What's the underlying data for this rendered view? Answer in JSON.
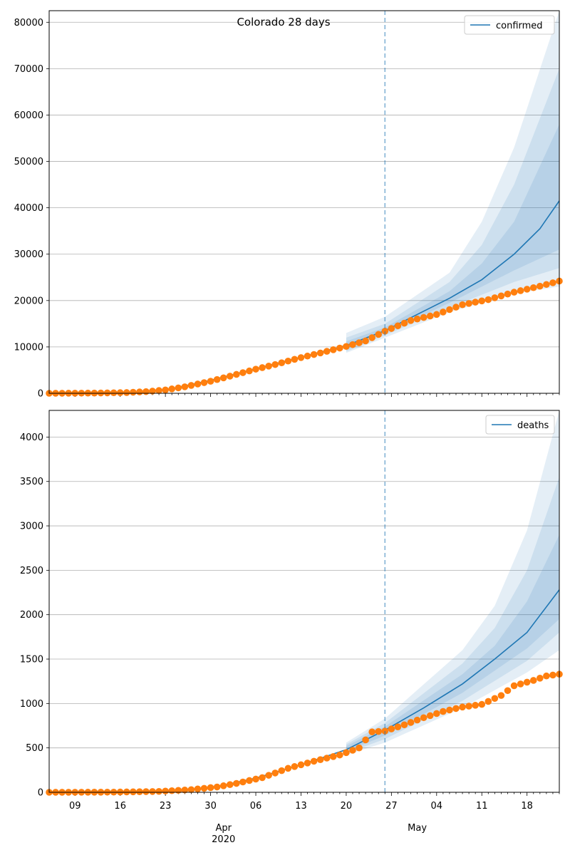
{
  "chart_data": [
    {
      "type": "line",
      "title": "Colorado 28 days",
      "xlabel": "",
      "ylabel": "",
      "ylim": [
        0,
        82500
      ],
      "yticks": [
        0,
        10000,
        20000,
        30000,
        40000,
        50000,
        60000,
        70000,
        80000
      ],
      "grid": true,
      "legend": "top-right",
      "forecast_start": "2020-04-26",
      "x_start": "2020-03-05",
      "x_end": "2020-05-23",
      "series": [
        {
          "name": "confirmed",
          "color": "#1f77b4",
          "model": [
            {
              "x": "2020-03-05",
              "y": 0
            },
            {
              "x": "2020-03-19",
              "y": 150
            },
            {
              "x": "2020-03-24",
              "y": 1000
            },
            {
              "x": "2020-03-30",
              "y": 2800
            },
            {
              "x": "2020-04-06",
              "y": 5300
            },
            {
              "x": "2020-04-13",
              "y": 7800
            },
            {
              "x": "2020-04-20",
              "y": 10300
            },
            {
              "x": "2020-04-26",
              "y": 13500
            },
            {
              "x": "2020-05-01",
              "y": 17000
            },
            {
              "x": "2020-05-06",
              "y": 20500
            },
            {
              "x": "2020-05-11",
              "y": 24500
            },
            {
              "x": "2020-05-16",
              "y": 30000
            },
            {
              "x": "2020-05-20",
              "y": 35500
            },
            {
              "x": "2020-05-23",
              "y": 41500
            }
          ],
          "bands": [
            {
              "color": "#1f77b4",
              "opacity": 0.12,
              "lower": [
                {
                  "x": "2020-04-20",
                  "y": 8700
                },
                {
                  "x": "2020-04-26",
                  "y": 12000
                },
                {
                  "x": "2020-05-06",
                  "y": 17500
                },
                {
                  "x": "2020-05-16",
                  "y": 21500
                },
                {
                  "x": "2020-05-23",
                  "y": 23000
                }
              ],
              "upper": [
                {
                  "x": "2020-04-20",
                  "y": 13000
                },
                {
                  "x": "2020-04-26",
                  "y": 16500
                },
                {
                  "x": "2020-05-06",
                  "y": 26000
                },
                {
                  "x": "2020-05-11",
                  "y": 37000
                },
                {
                  "x": "2020-05-16",
                  "y": 53000
                },
                {
                  "x": "2020-05-23",
                  "y": 82500
                }
              ]
            },
            {
              "color": "#1f77b4",
              "opacity": 0.12,
              "lower": [
                {
                  "x": "2020-04-20",
                  "y": 9000
                },
                {
                  "x": "2020-04-26",
                  "y": 12500
                },
                {
                  "x": "2020-05-06",
                  "y": 18500
                },
                {
                  "x": "2020-05-16",
                  "y": 24000
                },
                {
                  "x": "2020-05-23",
                  "y": 27000
                }
              ],
              "upper": [
                {
                  "x": "2020-04-20",
                  "y": 12000
                },
                {
                  "x": "2020-04-26",
                  "y": 15000
                },
                {
                  "x": "2020-05-06",
                  "y": 24000
                },
                {
                  "x": "2020-05-11",
                  "y": 32000
                },
                {
                  "x": "2020-05-16",
                  "y": 45000
                },
                {
                  "x": "2020-05-23",
                  "y": 70000
                }
              ]
            },
            {
              "color": "#1f77b4",
              "opacity": 0.12,
              "lower": [
                {
                  "x": "2020-04-20",
                  "y": 9500
                },
                {
                  "x": "2020-04-26",
                  "y": 13000
                },
                {
                  "x": "2020-05-06",
                  "y": 19500
                },
                {
                  "x": "2020-05-16",
                  "y": 26500
                },
                {
                  "x": "2020-05-23",
                  "y": 31000
                }
              ],
              "upper": [
                {
                  "x": "2020-04-20",
                  "y": 11200
                },
                {
                  "x": "2020-04-26",
                  "y": 14200
                },
                {
                  "x": "2020-05-06",
                  "y": 22000
                },
                {
                  "x": "2020-05-11",
                  "y": 28000
                },
                {
                  "x": "2020-05-16",
                  "y": 37000
                },
                {
                  "x": "2020-05-23",
                  "y": 58000
                }
              ]
            }
          ],
          "observed": [
            {
              "x": "2020-03-05",
              "y": 0
            },
            {
              "x": "2020-03-12",
              "y": 50
            },
            {
              "x": "2020-03-17",
              "y": 160
            },
            {
              "x": "2020-03-20",
              "y": 360
            },
            {
              "x": "2020-03-23",
              "y": 720
            },
            {
              "x": "2020-03-26",
              "y": 1400
            },
            {
              "x": "2020-03-30",
              "y": 2600
            },
            {
              "x": "2020-04-02",
              "y": 3700
            },
            {
              "x": "2020-04-06",
              "y": 5200
            },
            {
              "x": "2020-04-09",
              "y": 6200
            },
            {
              "x": "2020-04-13",
              "y": 7700
            },
            {
              "x": "2020-04-16",
              "y": 8700
            },
            {
              "x": "2020-04-20",
              "y": 10100
            },
            {
              "x": "2020-04-23",
              "y": 11300
            },
            {
              "x": "2020-04-26",
              "y": 13400
            },
            {
              "x": "2020-04-30",
              "y": 15700
            },
            {
              "x": "2020-05-04",
              "y": 17000
            },
            {
              "x": "2020-05-08",
              "y": 19100
            },
            {
              "x": "2020-05-12",
              "y": 20200
            },
            {
              "x": "2020-05-16",
              "y": 21800
            },
            {
              "x": "2020-05-20",
              "y": 23100
            },
            {
              "x": "2020-05-23",
              "y": 24200
            }
          ]
        }
      ]
    },
    {
      "type": "line",
      "title": "",
      "xlabel": "",
      "ylabel": "",
      "ylim": [
        0,
        4300
      ],
      "yticks": [
        0,
        500,
        1000,
        1500,
        2000,
        2500,
        3000,
        3500,
        4000
      ],
      "grid": true,
      "legend": "top-right",
      "forecast_start": "2020-04-26",
      "x_start": "2020-03-05",
      "x_end": "2020-05-23",
      "x_tick_labels": [
        "09",
        "16",
        "23",
        "30",
        "06",
        "13",
        "20",
        "27",
        "04",
        "11",
        "18"
      ],
      "x_month_labels": [
        "Apr\n2020",
        "May"
      ],
      "series": [
        {
          "name": "deaths",
          "color": "#1f77b4",
          "model": [
            {
              "x": "2020-03-05",
              "y": 0
            },
            {
              "x": "2020-03-20",
              "y": 0
            },
            {
              "x": "2020-03-27",
              "y": 25
            },
            {
              "x": "2020-04-01",
              "y": 80
            },
            {
              "x": "2020-04-06",
              "y": 160
            },
            {
              "x": "2020-04-13",
              "y": 310
            },
            {
              "x": "2020-04-20",
              "y": 480
            },
            {
              "x": "2020-04-26",
              "y": 700
            },
            {
              "x": "2020-05-02",
              "y": 950
            },
            {
              "x": "2020-05-08",
              "y": 1220
            },
            {
              "x": "2020-05-13",
              "y": 1500
            },
            {
              "x": "2020-05-18",
              "y": 1800
            },
            {
              "x": "2020-05-23",
              "y": 2280
            }
          ],
          "bands": [
            {
              "color": "#1f77b4",
              "opacity": 0.12,
              "lower": [
                {
                  "x": "2020-04-20",
                  "y": 420
                },
                {
                  "x": "2020-04-26",
                  "y": 560
                },
                {
                  "x": "2020-05-08",
                  "y": 950
                },
                {
                  "x": "2020-05-18",
                  "y": 1350
                },
                {
                  "x": "2020-05-23",
                  "y": 1600
                }
              ],
              "upper": [
                {
                  "x": "2020-04-20",
                  "y": 560
                },
                {
                  "x": "2020-04-26",
                  "y": 830
                },
                {
                  "x": "2020-05-08",
                  "y": 1600
                },
                {
                  "x": "2020-05-13",
                  "y": 2100
                },
                {
                  "x": "2020-05-18",
                  "y": 2950
                },
                {
                  "x": "2020-05-23",
                  "y": 4300
                }
              ]
            },
            {
              "color": "#1f77b4",
              "opacity": 0.12,
              "lower": [
                {
                  "x": "2020-04-20",
                  "y": 440
                },
                {
                  "x": "2020-04-26",
                  "y": 600
                },
                {
                  "x": "2020-05-08",
                  "y": 1030
                },
                {
                  "x": "2020-05-18",
                  "y": 1480
                },
                {
                  "x": "2020-05-23",
                  "y": 1800
                }
              ],
              "upper": [
                {
                  "x": "2020-04-20",
                  "y": 540
                },
                {
                  "x": "2020-04-26",
                  "y": 780
                },
                {
                  "x": "2020-05-08",
                  "y": 1450
                },
                {
                  "x": "2020-05-13",
                  "y": 1850
                },
                {
                  "x": "2020-05-18",
                  "y": 2500
                },
                {
                  "x": "2020-05-23",
                  "y": 3550
                }
              ]
            },
            {
              "color": "#1f77b4",
              "opacity": 0.12,
              "lower": [
                {
                  "x": "2020-04-20",
                  "y": 460
                },
                {
                  "x": "2020-04-26",
                  "y": 640
                },
                {
                  "x": "2020-05-08",
                  "y": 1120
                },
                {
                  "x": "2020-05-18",
                  "y": 1620
                },
                {
                  "x": "2020-05-23",
                  "y": 1950
                }
              ],
              "upper": [
                {
                  "x": "2020-04-20",
                  "y": 520
                },
                {
                  "x": "2020-04-26",
                  "y": 740
                },
                {
                  "x": "2020-05-08",
                  "y": 1330
                },
                {
                  "x": "2020-05-13",
                  "y": 1650
                },
                {
                  "x": "2020-05-18",
                  "y": 2150
                },
                {
                  "x": "2020-05-23",
                  "y": 2900
                }
              ]
            }
          ],
          "observed": [
            {
              "x": "2020-03-05",
              "y": 0
            },
            {
              "x": "2020-03-15",
              "y": 2
            },
            {
              "x": "2020-03-22",
              "y": 10
            },
            {
              "x": "2020-03-27",
              "y": 30
            },
            {
              "x": "2020-03-31",
              "y": 60
            },
            {
              "x": "2020-04-03",
              "y": 100
            },
            {
              "x": "2020-04-07",
              "y": 165
            },
            {
              "x": "2020-04-11",
              "y": 270
            },
            {
              "x": "2020-04-15",
              "y": 350
            },
            {
              "x": "2020-04-19",
              "y": 420
            },
            {
              "x": "2020-04-22",
              "y": 500
            },
            {
              "x": "2020-04-24",
              "y": 680
            },
            {
              "x": "2020-04-26",
              "y": 690
            },
            {
              "x": "2020-04-29",
              "y": 760
            },
            {
              "x": "2020-05-02",
              "y": 840
            },
            {
              "x": "2020-05-05",
              "y": 910
            },
            {
              "x": "2020-05-08",
              "y": 960
            },
            {
              "x": "2020-05-11",
              "y": 990
            },
            {
              "x": "2020-05-14",
              "y": 1090
            },
            {
              "x": "2020-05-16",
              "y": 1200
            },
            {
              "x": "2020-05-19",
              "y": 1260
            },
            {
              "x": "2020-05-21",
              "y": 1310
            },
            {
              "x": "2020-05-23",
              "y": 1330
            }
          ]
        }
      ]
    }
  ]
}
